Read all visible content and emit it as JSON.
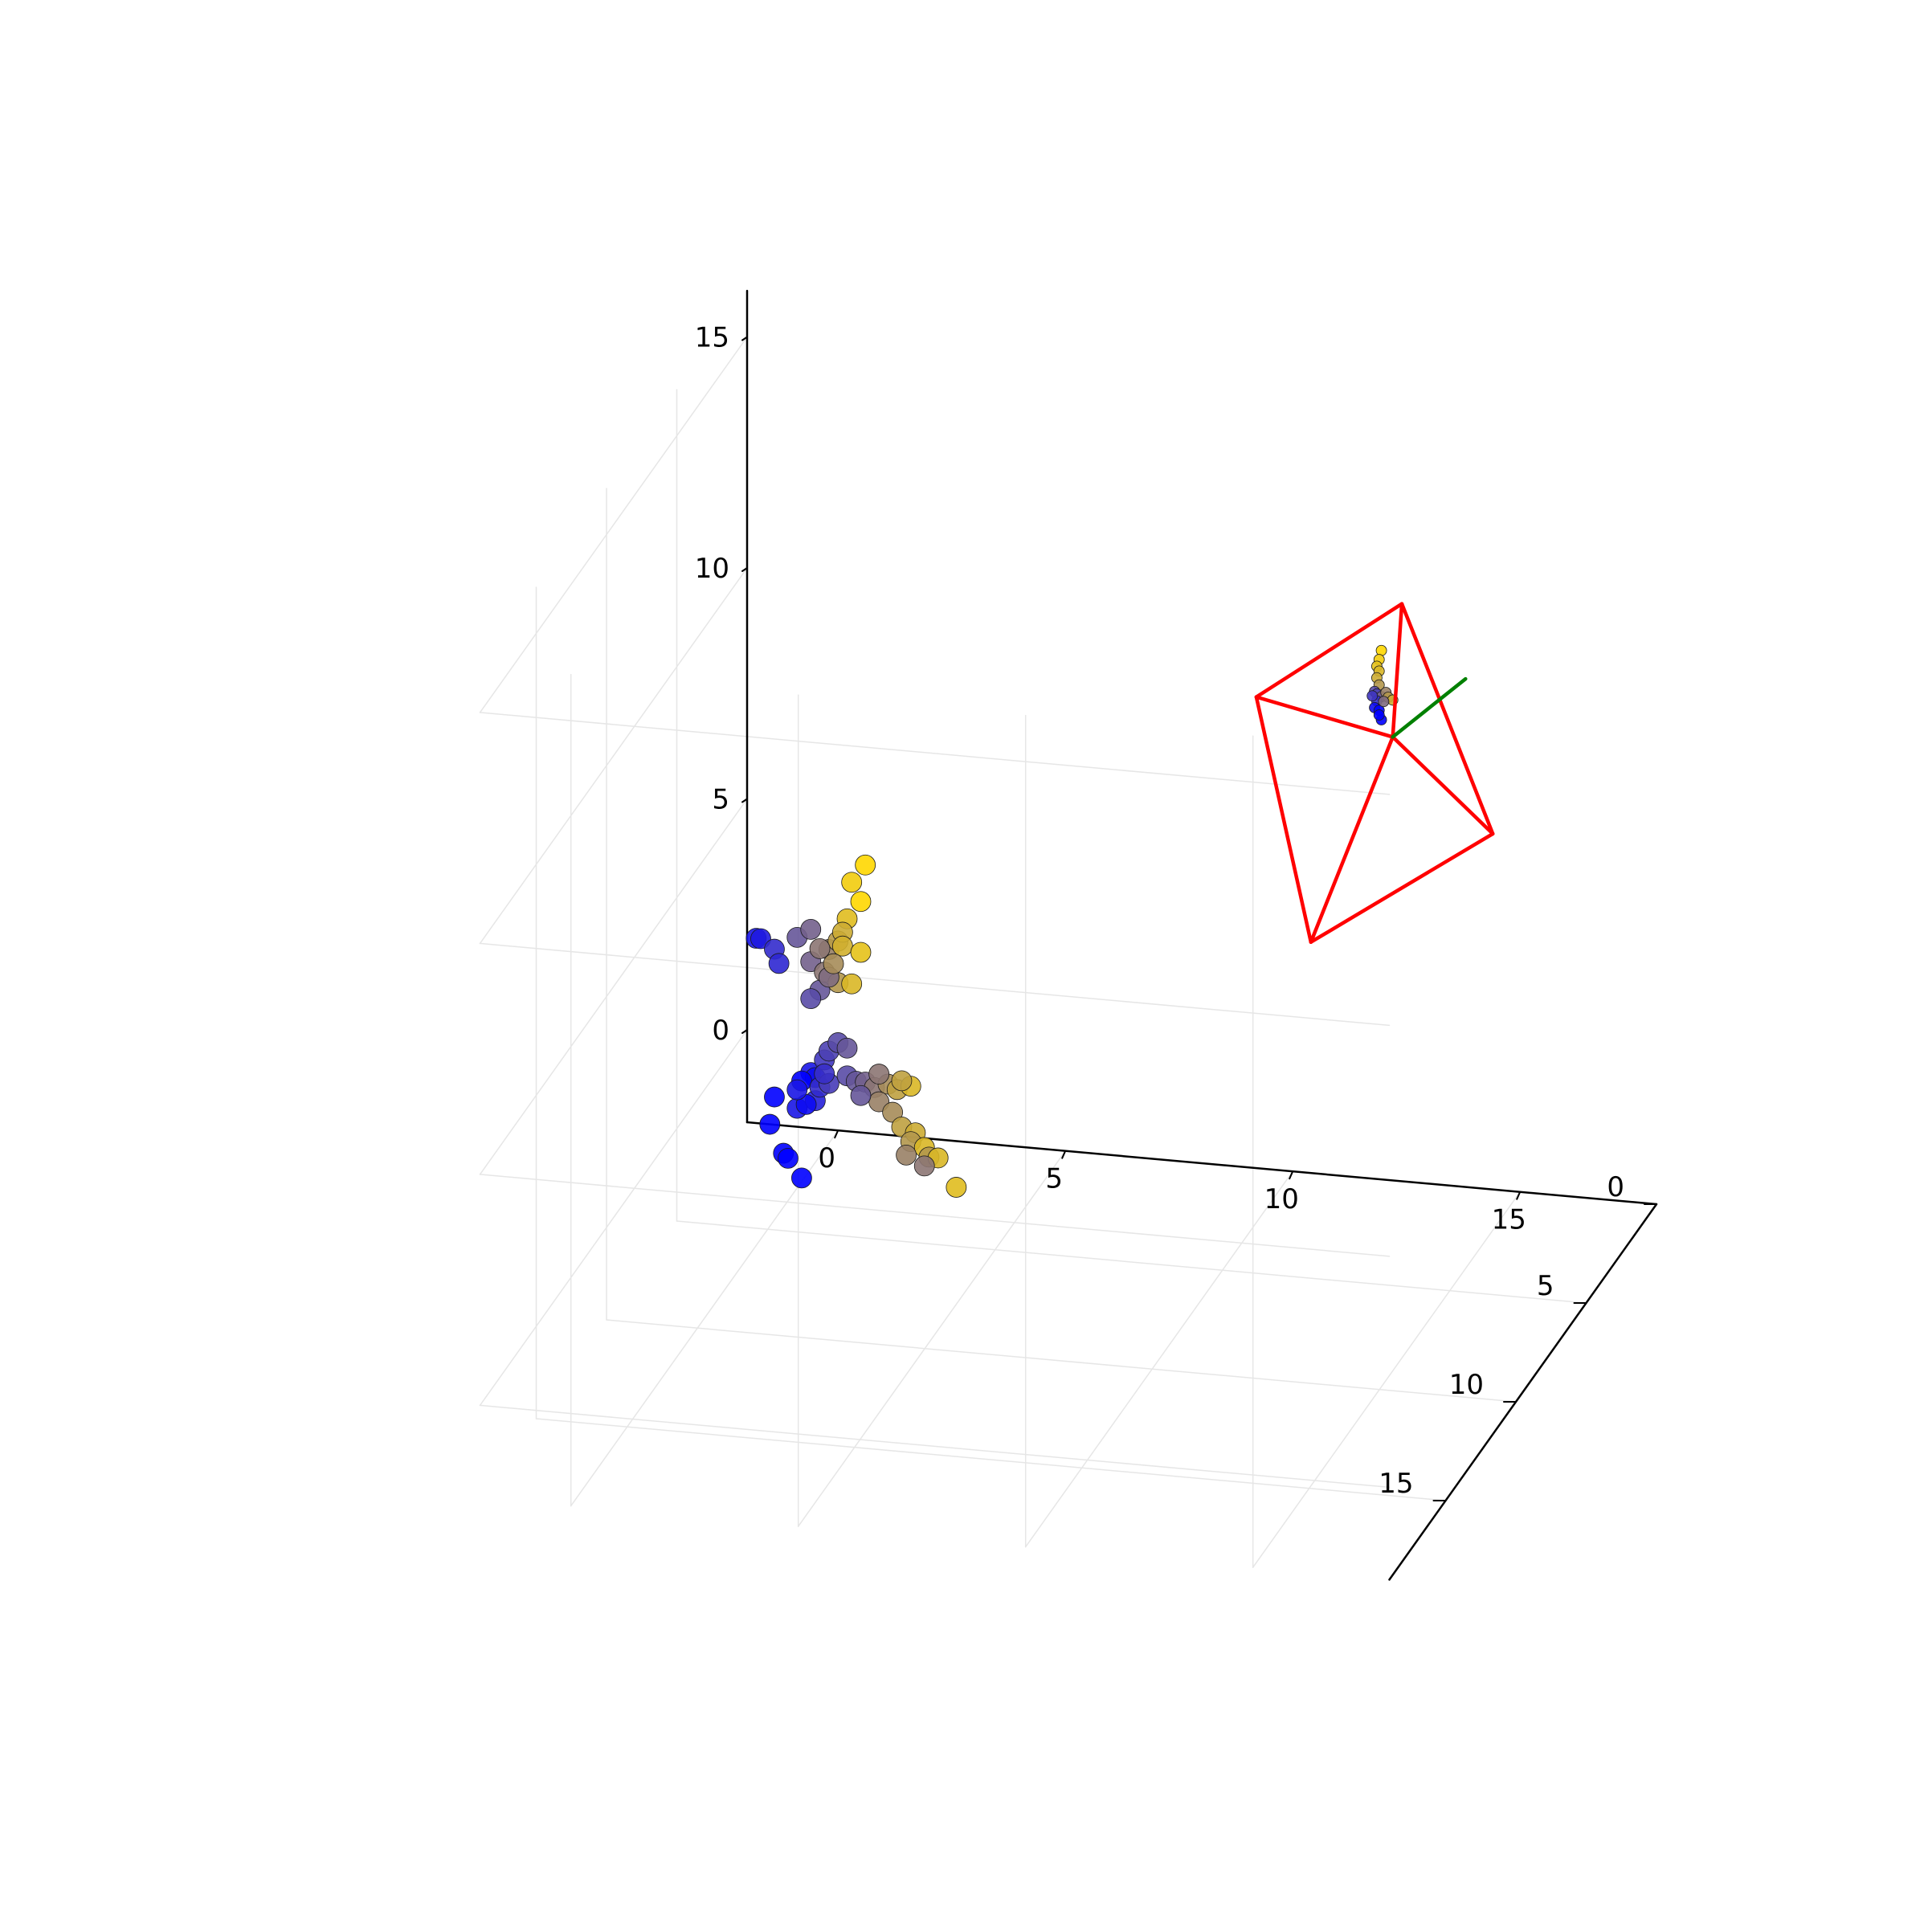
{
  "chart_data": {
    "type": "scatter",
    "title": "",
    "xlabel": "",
    "ylabel": "",
    "zlabel": "",
    "grid": true,
    "legend": "none",
    "x_axis": {
      "range": [
        -2,
        18
      ],
      "ticks": [
        0,
        5,
        10,
        15
      ]
    },
    "y_axis": {
      "range": [
        0,
        19
      ],
      "ticks": [
        0,
        5,
        10,
        15
      ]
    },
    "z_axis": {
      "range": [
        -2,
        16
      ],
      "ticks": [
        0,
        5,
        10,
        15
      ]
    },
    "colors": {
      "axis": "#000000",
      "grid": "#e6e6e6",
      "camera_frustum": "#ff0000",
      "camera_axis": "#008000",
      "point_low": "#0000ff",
      "point_high": "#ffd700"
    },
    "series": [
      {
        "points": [
          [
            -1.8,
            0,
            2.0,
            0.1
          ],
          [
            -1.7,
            0,
            2.0,
            0.12
          ],
          [
            -1.4,
            0,
            1.8,
            0.2
          ],
          [
            -1.3,
            0,
            1.5,
            0.18
          ],
          [
            -0.9,
            0,
            2.1,
            0.4
          ],
          [
            -0.6,
            0,
            2.3,
            0.45
          ],
          [
            -0.6,
            0,
            1.6,
            0.45
          ],
          [
            -0.4,
            0,
            1.0,
            0.4
          ],
          [
            -0.3,
            0,
            1.4,
            0.55
          ],
          [
            -0.2,
            0,
            1.9,
            0.6
          ],
          [
            0.0,
            0,
            2.1,
            0.72
          ],
          [
            0.2,
            0,
            2.6,
            0.88
          ],
          [
            0.1,
            0,
            2.3,
            0.8
          ],
          [
            0.3,
            0,
            3.4,
            0.95
          ],
          [
            0.5,
            0,
            3.0,
            1.0
          ],
          [
            0.6,
            0,
            3.8,
            1.0
          ],
          [
            0.0,
            0,
            1.2,
            0.7
          ],
          [
            -0.2,
            0,
            1.3,
            0.5
          ],
          [
            0.1,
            0,
            2.0,
            0.82
          ],
          [
            -0.6,
            0,
            0.8,
            0.35
          ],
          [
            -0.1,
            0,
            1.6,
            0.65
          ],
          [
            0.5,
            0,
            1.9,
            0.9
          ],
          [
            0.3,
            0,
            1.2,
            0.85
          ],
          [
            -0.4,
            0,
            1.9,
            0.55
          ],
          [
            -0.6,
            0,
            -0.8,
            0.1
          ],
          [
            -0.3,
            0,
            -0.5,
            0.25
          ],
          [
            -0.2,
            0,
            -0.3,
            0.3
          ],
          [
            0.0,
            0,
            -0.1,
            0.35
          ],
          [
            0.2,
            0,
            -0.2,
            0.4
          ],
          [
            -0.5,
            0,
            -0.9,
            0.05
          ],
          [
            -0.8,
            0,
            -1.0,
            0.0
          ],
          [
            -1.4,
            0,
            -1.4,
            0.0
          ],
          [
            -0.9,
            0,
            -1.6,
            0.1
          ],
          [
            -0.5,
            0,
            -1.4,
            0.15
          ],
          [
            -0.4,
            0,
            -1.1,
            0.2
          ],
          [
            -0.2,
            0,
            -1.0,
            0.28
          ],
          [
            0.2,
            0,
            -0.8,
            0.35
          ],
          [
            0.4,
            0,
            -0.9,
            0.4
          ],
          [
            0.6,
            0,
            -0.9,
            0.45
          ],
          [
            0.8,
            0,
            -1.0,
            0.55
          ],
          [
            1.1,
            0,
            -0.9,
            0.65
          ],
          [
            1.3,
            0,
            -1.0,
            0.75
          ],
          [
            1.6,
            0,
            -0.9,
            0.85
          ],
          [
            0.9,
            0,
            -1.3,
            0.6
          ],
          [
            1.2,
            0,
            -1.5,
            0.65
          ],
          [
            1.4,
            0,
            -1.8,
            0.75
          ],
          [
            1.7,
            0,
            -1.9,
            0.8
          ],
          [
            1.6,
            0,
            -2.1,
            0.7
          ],
          [
            1.9,
            0,
            -2.2,
            0.85
          ],
          [
            2.0,
            0,
            -2.4,
            0.7
          ],
          [
            2.2,
            0,
            -2.4,
            0.85
          ],
          [
            1.5,
            0,
            -2.4,
            0.6
          ],
          [
            1.9,
            0,
            -2.6,
            0.55
          ],
          [
            2.6,
            0,
            -3.0,
            0.88
          ],
          [
            -1.5,
            0,
            -2.0,
            0.0
          ],
          [
            -1.2,
            0,
            -2.6,
            0.0
          ],
          [
            -1.1,
            0,
            -2.7,
            0.0
          ],
          [
            -0.8,
            0,
            -3.1,
            0.0
          ],
          [
            -0.7,
            0,
            -1.5,
            0.05
          ],
          [
            -0.9,
            0,
            -1.2,
            0.1
          ],
          [
            0.5,
            0,
            -1.2,
            0.4
          ],
          [
            0.9,
            0,
            -0.7,
            0.55
          ],
          [
            1.4,
            0,
            -0.8,
            0.75
          ],
          [
            -0.3,
            0,
            -0.8,
            0.22
          ]
        ]
      },
      {
        "points": [
          [
            11.95,
            0,
            9.45,
            1.0
          ],
          [
            11.9,
            0,
            9.25,
            0.95
          ],
          [
            11.85,
            0,
            9.1,
            0.9
          ],
          [
            11.9,
            0,
            9.0,
            0.85
          ],
          [
            11.85,
            0,
            8.85,
            0.8
          ],
          [
            11.9,
            0,
            8.7,
            0.7
          ],
          [
            11.8,
            0,
            8.55,
            0.35
          ],
          [
            11.85,
            0,
            8.5,
            0.3
          ],
          [
            11.95,
            0,
            8.45,
            0.45
          ],
          [
            12.05,
            0,
            8.55,
            0.6
          ],
          [
            12.1,
            0,
            8.45,
            0.7
          ],
          [
            12.2,
            0,
            8.4,
            0.8
          ],
          [
            11.85,
            0,
            8.35,
            0.2
          ],
          [
            11.8,
            0,
            8.2,
            0.05
          ],
          [
            11.9,
            0,
            8.15,
            0.0
          ],
          [
            11.95,
            0,
            7.95,
            0.0
          ],
          [
            11.9,
            0,
            8.05,
            0.0
          ],
          [
            11.75,
            0,
            8.45,
            0.25
          ],
          [
            12.0,
            0,
            8.35,
            0.5
          ]
        ]
      }
    ],
    "camera_frustum": {
      "center": [
        12.2,
        0,
        7.6
      ],
      "corners": [
        [
          12.4,
          0,
          10.5
        ],
        [
          9.2,
          0,
          8.2
        ],
        [
          10.4,
          0,
          3.0
        ],
        [
          14.4,
          0,
          5.7
        ]
      ],
      "axis_end": [
        13.8,
        0,
        9.0
      ]
    }
  }
}
